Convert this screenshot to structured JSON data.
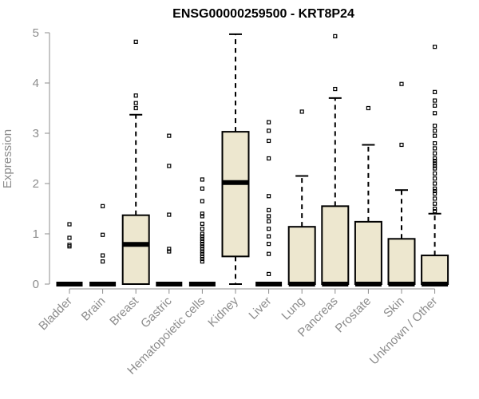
{
  "chart_data": {
    "type": "boxplot",
    "title": "ENSG00000259500 - KRT8P24",
    "xlabel": "",
    "ylabel": "Expression",
    "ylim": [
      0,
      5
    ],
    "yticks": [
      0,
      1,
      2,
      3,
      4,
      5
    ],
    "box_color": "#ede7cf",
    "categories": [
      "Bladder",
      "Brain",
      "Breast",
      "Gastric",
      "Hematopoietic cells",
      "Kidney",
      "Liver",
      "Lung",
      "Pancreas",
      "Prostate",
      "Skin",
      "Unknown / Other"
    ],
    "boxes": [
      {
        "name": "Bladder",
        "q1": 0,
        "median": 0,
        "q3": 0,
        "whisker_low": 0,
        "whisker_high": 0,
        "outliers": [
          0.75,
          0.78,
          0.92,
          1.19
        ]
      },
      {
        "name": "Brain",
        "q1": 0,
        "median": 0,
        "q3": 0,
        "whisker_low": 0,
        "whisker_high": 0,
        "outliers": [
          0.45,
          0.57,
          0.98,
          1.55
        ]
      },
      {
        "name": "Breast",
        "q1": 0,
        "median": 0.79,
        "q3": 1.37,
        "whisker_low": 0,
        "whisker_high": 3.37,
        "outliers": [
          3.5,
          3.6,
          3.75,
          4.82
        ]
      },
      {
        "name": "Gastric",
        "q1": 0,
        "median": 0,
        "q3": 0,
        "whisker_low": 0,
        "whisker_high": 0,
        "outliers": [
          0.65,
          0.7,
          1.38,
          2.35,
          2.95
        ]
      },
      {
        "name": "Hematopoietic cells",
        "q1": 0,
        "median": 0,
        "q3": 0,
        "whisker_low": 0,
        "whisker_high": 0,
        "outliers": [
          0.45,
          0.5,
          0.55,
          0.6,
          0.65,
          0.7,
          0.75,
          0.8,
          0.85,
          0.9,
          0.95,
          1.0,
          1.1,
          1.2,
          1.35,
          1.4,
          1.65,
          1.9,
          2.08
        ]
      },
      {
        "name": "Kidney",
        "q1": 0.55,
        "median": 2.02,
        "q3": 3.03,
        "whisker_low": 0,
        "whisker_high": 4.97,
        "outliers": []
      },
      {
        "name": "Liver",
        "q1": 0,
        "median": 0,
        "q3": 0,
        "whisker_low": 0,
        "whisker_high": 0,
        "outliers": [
          0.2,
          0.6,
          0.8,
          0.95,
          1.1,
          1.25,
          1.35,
          1.47,
          1.75,
          2.5,
          2.85,
          3.05,
          3.22
        ]
      },
      {
        "name": "Lung",
        "q1": 0,
        "median": 0,
        "q3": 1.14,
        "whisker_low": 0,
        "whisker_high": 2.15,
        "outliers": [
          3.43
        ]
      },
      {
        "name": "Pancreas",
        "q1": 0,
        "median": 0,
        "q3": 1.55,
        "whisker_low": 0,
        "whisker_high": 3.7,
        "outliers": [
          3.88,
          4.93
        ]
      },
      {
        "name": "Prostate",
        "q1": 0,
        "median": 0,
        "q3": 1.24,
        "whisker_low": 0,
        "whisker_high": 2.77,
        "outliers": [
          3.5
        ]
      },
      {
        "name": "Skin",
        "q1": 0,
        "median": 0,
        "q3": 0.9,
        "whisker_low": 0,
        "whisker_high": 1.87,
        "outliers": [
          2.77,
          3.98
        ]
      },
      {
        "name": "Unknown / Other",
        "q1": 0,
        "median": 0,
        "q3": 0.57,
        "whisker_low": 0,
        "whisker_high": 1.4,
        "outliers": [
          1.45,
          1.5,
          1.6,
          1.7,
          1.8,
          1.85,
          1.9,
          2.0,
          2.1,
          2.2,
          2.3,
          2.35,
          2.4,
          2.45,
          2.5,
          2.6,
          2.7,
          2.8,
          2.95,
          3.05,
          3.15,
          3.4,
          3.55,
          3.65,
          3.82,
          4.72
        ]
      }
    ]
  }
}
